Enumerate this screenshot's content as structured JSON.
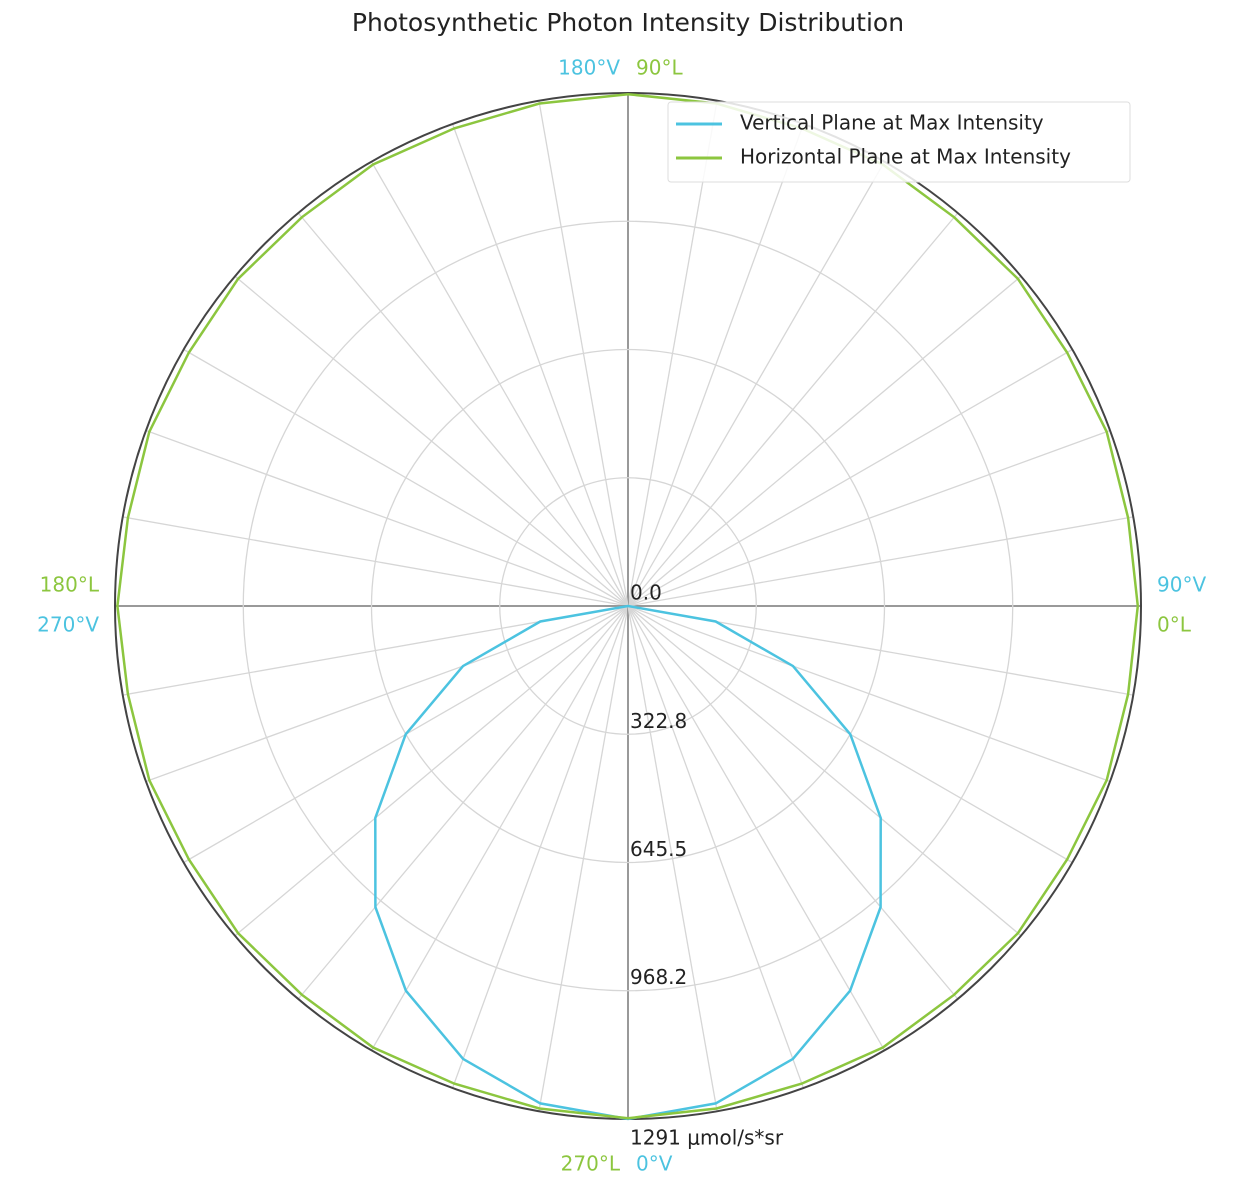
{
  "chart_data": {
    "type": "polar",
    "title": "Photosynthetic Photon Intensity Distribution",
    "rlim": [
      0,
      1291
    ],
    "rticks": [
      {
        "value": 0,
        "label": "0.0"
      },
      322.8,
      645.5,
      968.2,
      {
        "value": 1291,
        "label": "1291 μmol/s*sr"
      }
    ],
    "theta_grid_step": 10,
    "grid": true,
    "legend": "upper right",
    "series": [
      {
        "name": "Vertical Plane at Max Intensity",
        "color": "#4cc3e0",
        "zero_location": "S",
        "angle_ticks": [
          {
            "value": 0,
            "label": "0°V"
          },
          {
            "value": 90,
            "label": "90°V"
          },
          {
            "value": 180,
            "label": "180°V"
          },
          {
            "value": 270,
            "label": "270°V"
          }
        ],
        "theta": [
          0,
          10,
          20,
          30,
          40,
          50,
          60,
          70,
          80,
          90,
          100,
          110,
          120,
          130,
          140,
          150,
          160,
          170,
          180,
          190,
          200,
          210,
          220,
          230,
          240,
          250,
          260,
          270,
          280,
          290,
          300,
          310,
          320,
          330,
          340,
          350,
          360
        ],
        "values": [
          1291,
          1271,
          1213,
          1118,
          989,
          830,
          646,
          442,
          224,
          0,
          0,
          0,
          0,
          0,
          0,
          0,
          0,
          0,
          0,
          0,
          0,
          0,
          0,
          0,
          0,
          0,
          0,
          0,
          224,
          442,
          646,
          830,
          989,
          1118,
          1213,
          1271,
          1291
        ]
      },
      {
        "name": "Horizontal Plane at Max Intensity",
        "color": "#8cc63f",
        "zero_location": "E",
        "angle_ticks": [
          {
            "value": 0,
            "label": "0°L"
          },
          {
            "value": 90,
            "label": "90°L"
          },
          {
            "value": 180,
            "label": "180°L"
          },
          {
            "value": 270,
            "label": "270°L"
          }
        ],
        "theta": [
          0,
          10,
          20,
          30,
          40,
          50,
          60,
          70,
          80,
          90,
          100,
          110,
          120,
          130,
          140,
          150,
          160,
          170,
          180,
          190,
          200,
          210,
          220,
          230,
          240,
          250,
          260,
          270,
          280,
          290,
          300,
          310,
          320,
          330,
          340,
          350,
          360
        ],
        "values": [
          1283,
          1278,
          1282,
          1276,
          1281,
          1277,
          1283,
          1279,
          1284,
          1288,
          1284,
          1279,
          1283,
          1277,
          1281,
          1276,
          1282,
          1278,
          1285,
          1278,
          1282,
          1276,
          1281,
          1277,
          1283,
          1279,
          1284,
          1289,
          1284,
          1279,
          1283,
          1277,
          1281,
          1276,
          1282,
          1278,
          1283
        ]
      }
    ]
  }
}
